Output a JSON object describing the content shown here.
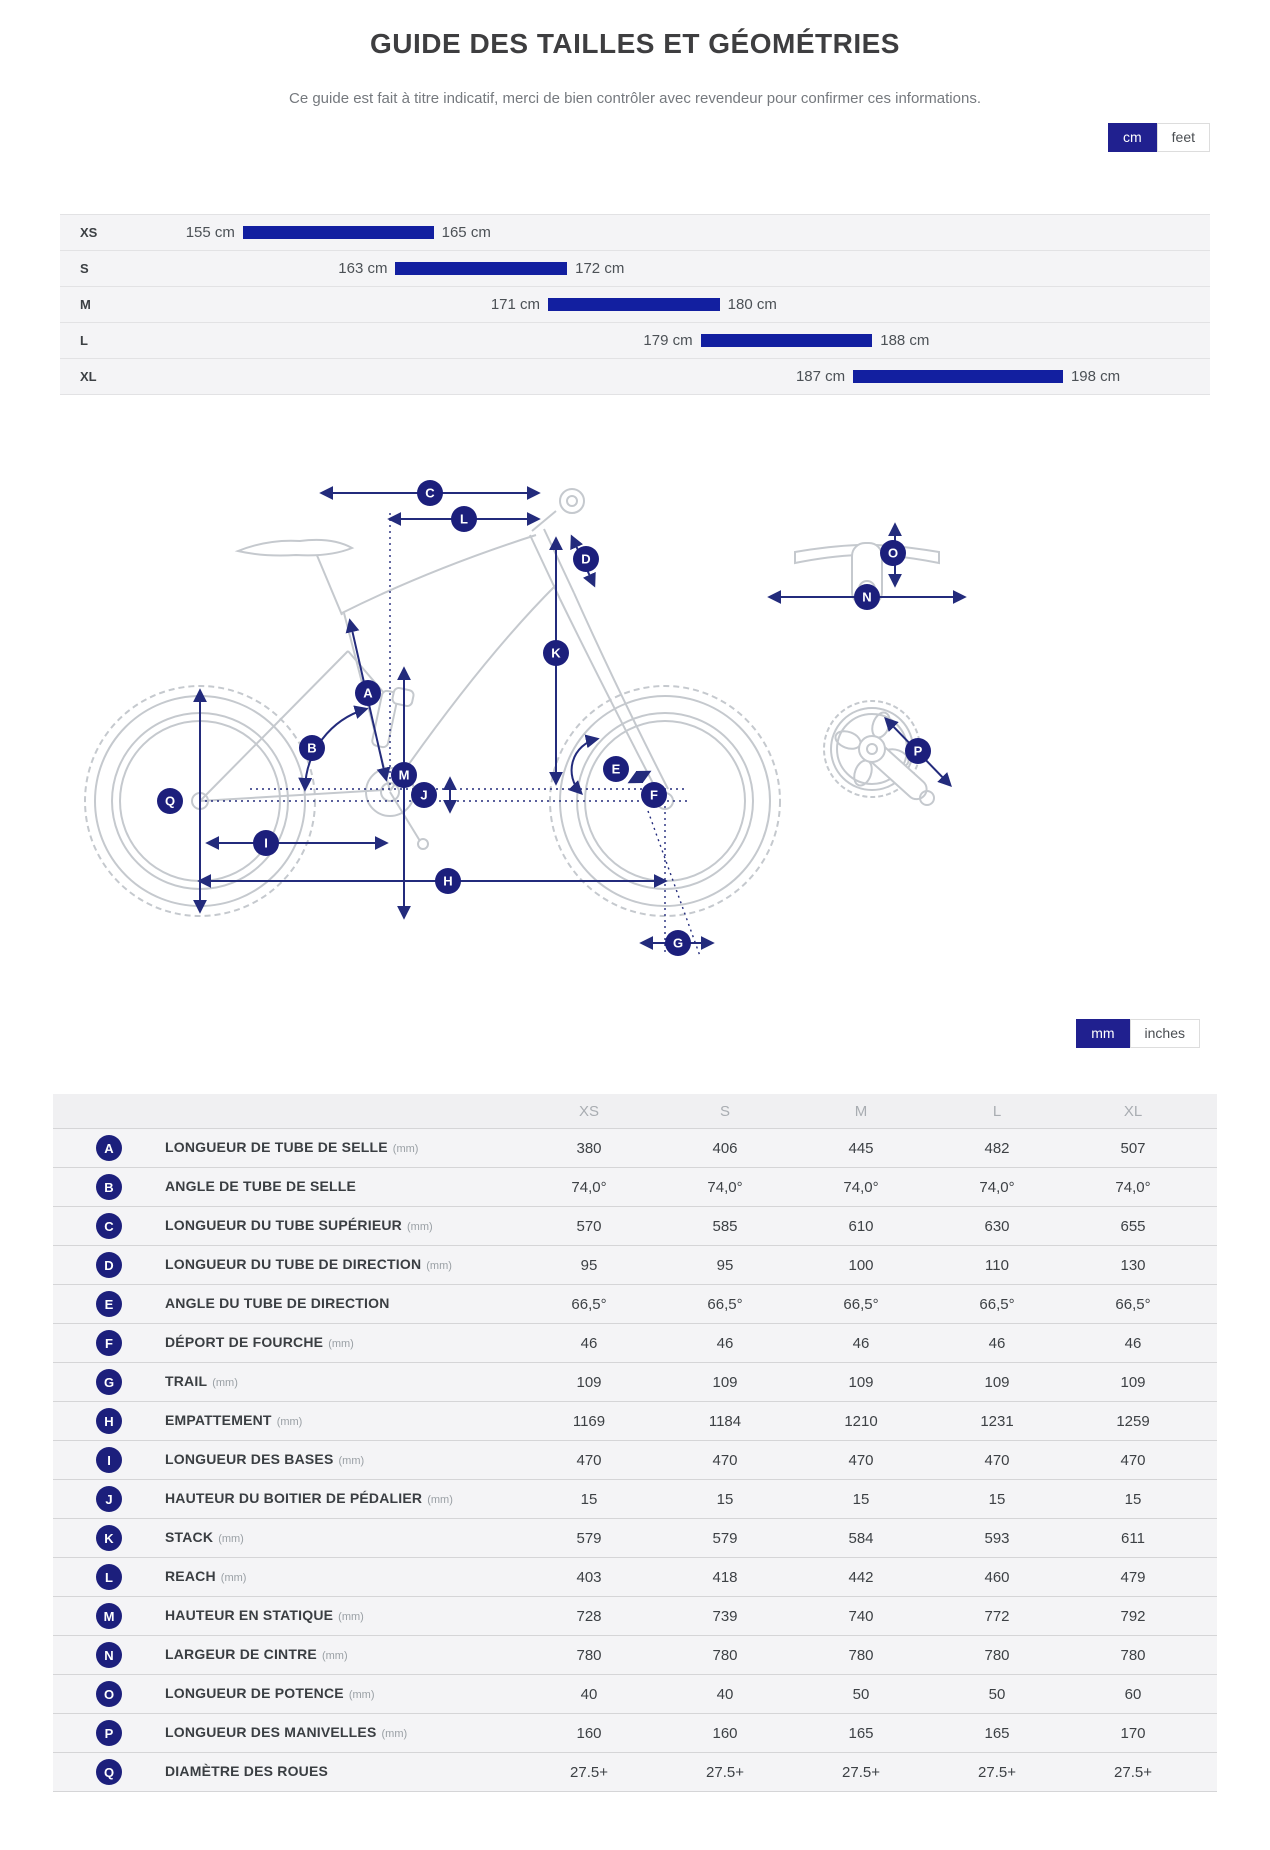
{
  "header": {
    "title": "GUIDE DES TAILLES ET GÉOMÉTRIES",
    "subtitle": "Ce guide est fait à titre indicatif, merci de bien contrôler avec revendeur pour confirmer ces informations."
  },
  "toggles": {
    "height_units": {
      "options": [
        "cm",
        "feet"
      ],
      "selected": "cm"
    },
    "geometry_units": {
      "options": [
        "mm",
        "inches"
      ],
      "selected": "mm"
    }
  },
  "size_chart": {
    "unit": "cm",
    "rows": [
      {
        "size": "XS",
        "min": 155,
        "max": 165,
        "min_label": "155 cm",
        "max_label": "165 cm"
      },
      {
        "size": "S",
        "min": 163,
        "max": 172,
        "min_label": "163 cm",
        "max_label": "172 cm"
      },
      {
        "size": "M",
        "min": 171,
        "max": 180,
        "min_label": "171 cm",
        "max_label": "180 cm"
      },
      {
        "size": "L",
        "min": 179,
        "max": 188,
        "min_label": "179 cm",
        "max_label": "188 cm"
      },
      {
        "size": "XL",
        "min": 187,
        "max": 198,
        "min_label": "187 cm",
        "max_label": "198 cm"
      }
    ]
  },
  "diagram": {
    "badge_letters": [
      "A",
      "B",
      "C",
      "D",
      "E",
      "F",
      "G",
      "H",
      "I",
      "J",
      "K",
      "L",
      "M",
      "N",
      "O",
      "P",
      "Q"
    ]
  },
  "geometry_table": {
    "columns": [
      "XS",
      "S",
      "M",
      "L",
      "XL"
    ],
    "rows": [
      {
        "letter": "A",
        "label": "LONGUEUR DE TUBE DE SELLE",
        "unit": "(mm)",
        "values": [
          "380",
          "406",
          "445",
          "482",
          "507"
        ]
      },
      {
        "letter": "B",
        "label": "ANGLE DE TUBE DE SELLE",
        "unit": "",
        "values": [
          "74,0°",
          "74,0°",
          "74,0°",
          "74,0°",
          "74,0°"
        ]
      },
      {
        "letter": "C",
        "label": "LONGUEUR DU TUBE SUPÉRIEUR",
        "unit": "(mm)",
        "values": [
          "570",
          "585",
          "610",
          "630",
          "655"
        ]
      },
      {
        "letter": "D",
        "label": "LONGUEUR DU TUBE DE DIRECTION",
        "unit": "(mm)",
        "values": [
          "95",
          "95",
          "100",
          "110",
          "130"
        ]
      },
      {
        "letter": "E",
        "label": "ANGLE DU TUBE DE DIRECTION",
        "unit": "",
        "values": [
          "66,5°",
          "66,5°",
          "66,5°",
          "66,5°",
          "66,5°"
        ]
      },
      {
        "letter": "F",
        "label": "DÉPORT DE FOURCHE",
        "unit": "(mm)",
        "values": [
          "46",
          "46",
          "46",
          "46",
          "46"
        ]
      },
      {
        "letter": "G",
        "label": "TRAIL",
        "unit": "(mm)",
        "values": [
          "109",
          "109",
          "109",
          "109",
          "109"
        ]
      },
      {
        "letter": "H",
        "label": "EMPATTEMENT",
        "unit": "(mm)",
        "values": [
          "1169",
          "1184",
          "1210",
          "1231",
          "1259"
        ]
      },
      {
        "letter": "I",
        "label": "LONGUEUR DES BASES",
        "unit": "(mm)",
        "values": [
          "470",
          "470",
          "470",
          "470",
          "470"
        ]
      },
      {
        "letter": "J",
        "label": "HAUTEUR DU BOITIER DE PÉDALIER",
        "unit": "(mm)",
        "values": [
          "15",
          "15",
          "15",
          "15",
          "15"
        ]
      },
      {
        "letter": "K",
        "label": "STACK",
        "unit": "(mm)",
        "values": [
          "579",
          "579",
          "584",
          "593",
          "611"
        ]
      },
      {
        "letter": "L",
        "label": "REACH",
        "unit": "(mm)",
        "values": [
          "403",
          "418",
          "442",
          "460",
          "479"
        ]
      },
      {
        "letter": "M",
        "label": "HAUTEUR EN STATIQUE",
        "unit": "(mm)",
        "values": [
          "728",
          "739",
          "740",
          "772",
          "792"
        ]
      },
      {
        "letter": "N",
        "label": "LARGEUR DE CINTRE",
        "unit": "(mm)",
        "values": [
          "780",
          "780",
          "780",
          "780",
          "780"
        ]
      },
      {
        "letter": "O",
        "label": "LONGUEUR DE POTENCE",
        "unit": "(mm)",
        "values": [
          "40",
          "40",
          "50",
          "50",
          "60"
        ]
      },
      {
        "letter": "P",
        "label": "LONGUEUR DES MANIVELLES",
        "unit": "(mm)",
        "values": [
          "160",
          "160",
          "165",
          "165",
          "170"
        ]
      },
      {
        "letter": "Q",
        "label": "DIAMÈTRE DES ROUES",
        "unit": "",
        "values": [
          "27.5+",
          "27.5+",
          "27.5+",
          "27.5+",
          "27.5+"
        ]
      }
    ]
  },
  "colors": {
    "bar_blue": "#121fa0",
    "badge_navy": "#1c1f7c",
    "toggle_navy": "#20208f"
  }
}
